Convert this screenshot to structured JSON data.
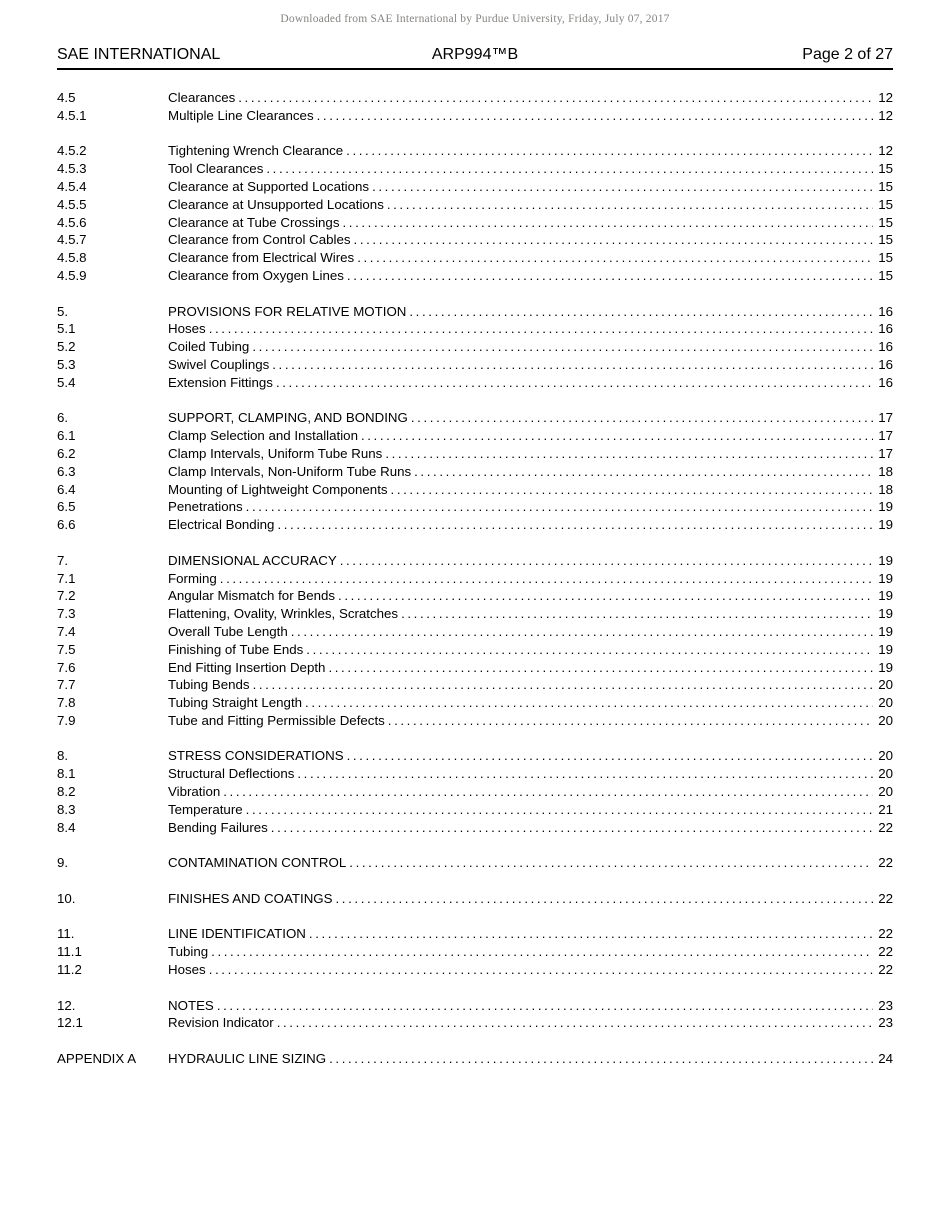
{
  "watermark": "Downloaded from SAE International by Purdue University, Friday, July 07, 2017",
  "header": {
    "left": "SAE INTERNATIONAL",
    "center": "ARP994™B",
    "right": "Page 2 of 27"
  },
  "toc": {
    "groups": [
      {
        "entries": [
          {
            "num": "4.5",
            "title": "Clearances",
            "page": "12"
          },
          {
            "num": "4.5.1",
            "title": "Multiple Line Clearances",
            "page": "12"
          }
        ]
      },
      {
        "entries": [
          {
            "num": "4.5.2",
            "title": "Tightening Wrench Clearance",
            "page": "12"
          },
          {
            "num": "4.5.3",
            "title": "Tool Clearances",
            "page": "15"
          },
          {
            "num": "4.5.4",
            "title": "Clearance at Supported Locations",
            "page": "15"
          },
          {
            "num": "4.5.5",
            "title": "Clearance at Unsupported Locations",
            "page": "15"
          },
          {
            "num": "4.5.6",
            "title": "Clearance at Tube Crossings",
            "page": "15"
          },
          {
            "num": "4.5.7",
            "title": "Clearance from Control Cables",
            "page": "15"
          },
          {
            "num": "4.5.8",
            "title": "Clearance from Electrical Wires",
            "page": "15"
          },
          {
            "num": "4.5.9",
            "title": "Clearance from Oxygen Lines",
            "page": "15"
          }
        ]
      },
      {
        "entries": [
          {
            "num": "5.",
            "title": "PROVISIONS FOR RELATIVE MOTION",
            "page": "16"
          },
          {
            "num": "5.1",
            "title": "Hoses",
            "page": "16"
          },
          {
            "num": "5.2",
            "title": "Coiled Tubing",
            "page": "16"
          },
          {
            "num": "5.3",
            "title": "Swivel Couplings",
            "page": "16"
          },
          {
            "num": "5.4",
            "title": "Extension Fittings",
            "page": "16"
          }
        ]
      },
      {
        "entries": [
          {
            "num": "6.",
            "title": "SUPPORT, CLAMPING, AND BONDING",
            "page": "17"
          },
          {
            "num": "6.1",
            "title": "Clamp Selection and Installation",
            "page": "17"
          },
          {
            "num": "6.2",
            "title": "Clamp Intervals, Uniform Tube Runs",
            "page": "17"
          },
          {
            "num": "6.3",
            "title": "Clamp Intervals, Non-Uniform Tube Runs",
            "page": "18"
          },
          {
            "num": "6.4",
            "title": "Mounting of Lightweight Components",
            "page": "18"
          },
          {
            "num": "6.5",
            "title": "Penetrations",
            "page": "19"
          },
          {
            "num": "6.6",
            "title": "Electrical Bonding",
            "page": "19"
          }
        ]
      },
      {
        "entries": [
          {
            "num": "7.",
            "title": "DIMENSIONAL ACCURACY",
            "page": "19"
          },
          {
            "num": "7.1",
            "title": "Forming",
            "page": "19"
          },
          {
            "num": "7.2",
            "title": "Angular Mismatch for Bends",
            "page": "19"
          },
          {
            "num": "7.3",
            "title": "Flattening, Ovality, Wrinkles, Scratches",
            "page": "19"
          },
          {
            "num": "7.4",
            "title": "Overall Tube Length",
            "page": "19"
          },
          {
            "num": "7.5",
            "title": "Finishing of Tube Ends",
            "page": "19"
          },
          {
            "num": "7.6",
            "title": "End Fitting Insertion Depth",
            "page": "19"
          },
          {
            "num": "7.7",
            "title": "Tubing Bends",
            "page": "20"
          },
          {
            "num": "7.8",
            "title": "Tubing Straight Length",
            "page": "20"
          },
          {
            "num": "7.9",
            "title": "Tube and Fitting Permissible Defects",
            "page": "20"
          }
        ]
      },
      {
        "entries": [
          {
            "num": "8.",
            "title": "STRESS CONSIDERATIONS",
            "page": "20"
          },
          {
            "num": "8.1",
            "title": "Structural Deflections",
            "page": "20"
          },
          {
            "num": "8.2",
            "title": "Vibration",
            "page": "20"
          },
          {
            "num": "8.3",
            "title": "Temperature",
            "page": "21"
          },
          {
            "num": "8.4",
            "title": "Bending Failures",
            "page": "22"
          }
        ]
      },
      {
        "entries": [
          {
            "num": "9.",
            "title": "CONTAMINATION CONTROL",
            "page": "22"
          }
        ]
      },
      {
        "entries": [
          {
            "num": "10.",
            "title": "FINISHES AND COATINGS",
            "page": "22"
          }
        ]
      },
      {
        "entries": [
          {
            "num": "11.",
            "title": "LINE IDENTIFICATION",
            "page": "22"
          },
          {
            "num": "11.1",
            "title": "Tubing",
            "page": "22"
          },
          {
            "num": "11.2",
            "title": "Hoses",
            "page": "22"
          }
        ]
      },
      {
        "entries": [
          {
            "num": "12.",
            "title": "NOTES",
            "page": "23"
          },
          {
            "num": "12.1",
            "title": "Revision Indicator",
            "page": "23"
          }
        ]
      },
      {
        "entries": [
          {
            "num": "APPENDIX A",
            "title": "HYDRAULIC LINE SIZING",
            "page": "24"
          }
        ]
      }
    ]
  }
}
